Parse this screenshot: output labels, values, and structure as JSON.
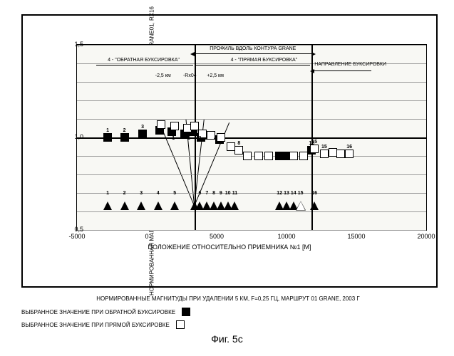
{
  "axes": {
    "ylabel": "НОРМИРОВАННАЯ МАГНИТУДА ПРОВЕДЕНИЕ ЭЛЕКТРОКАРОТАЖА ПРИ БУКСИРОВКЕ, GRANE01, RX16",
    "xlabel": "ПОЛОЖЕНИЕ ОТНОСИТЕЛЬНО ПРИЕМНИКА №1 [М]",
    "xlim": [
      -5000,
      20000
    ],
    "ylim": [
      0.5,
      1.5
    ],
    "xticks": [
      -5000,
      0,
      5000,
      10000,
      15000,
      20000
    ],
    "yticks": [
      0.5,
      1.0,
      1.5
    ],
    "plot_bg": "#f8f8f4",
    "grid_color": "#9a9a9a",
    "minor_y_lines": 8
  },
  "annotations": {
    "profile": "ПРОФИЛЬ ВДОЛЬ КОНТУРА GRANE",
    "reverse_tow": "4 - \"ОБРАТНАЯ БУКСИРОВКА\"",
    "forward_tow": "4 - \"ПРЯМАЯ БУКСИРОВКА\"",
    "direction": "НАПРАВЛЕНИЕ БУКСИРОВКИ",
    "minus25": "-2,5 км",
    "rx04": "-Rx04",
    "plus25": "+2,5 км",
    "profile_vlines_x": [
      3400,
      11800
    ]
  },
  "series": {
    "filled": [
      {
        "x": -2800,
        "y": 1.0,
        "label": "1"
      },
      {
        "x": -1600,
        "y": 1.0,
        "label": "2"
      },
      {
        "x": -300,
        "y": 1.02,
        "label": "3"
      },
      {
        "x": 900,
        "y": 1.04
      },
      {
        "x": 1800,
        "y": 1.03
      },
      {
        "x": 2700,
        "y": 1.02
      },
      {
        "x": 3300,
        "y": 1.03
      },
      {
        "x": 3900,
        "y": 1.0
      },
      {
        "x": 4500,
        "y": 1.01
      },
      {
        "x": 5200,
        "y": 0.99
      },
      {
        "x": 9500,
        "y": 0.9
      },
      {
        "x": 10000,
        "y": 0.9
      },
      {
        "x": 11800,
        "y": 0.93,
        "label": "16"
      }
    ],
    "hollow": [
      {
        "x": 1000,
        "y": 1.07
      },
      {
        "x": 2000,
        "y": 1.06
      },
      {
        "x": 2900,
        "y": 1.05
      },
      {
        "x": 3400,
        "y": 1.06
      },
      {
        "x": 4000,
        "y": 1.02
      },
      {
        "x": 4600,
        "y": 1.01
      },
      {
        "x": 5300,
        "y": 1.0
      },
      {
        "x": 6000,
        "y": 0.95
      },
      {
        "x": 6600,
        "y": 0.93,
        "label": "8"
      },
      {
        "x": 7200,
        "y": 0.9
      },
      {
        "x": 8000,
        "y": 0.9
      },
      {
        "x": 8700,
        "y": 0.9
      },
      {
        "x": 10500,
        "y": 0.9
      },
      {
        "x": 11200,
        "y": 0.9
      },
      {
        "x": 12000,
        "y": 0.94,
        "label": "15"
      },
      {
        "x": 12700,
        "y": 0.91,
        "label": "15"
      },
      {
        "x": 13300,
        "y": 0.92
      },
      {
        "x": 13900,
        "y": 0.91
      },
      {
        "x": 14500,
        "y": 0.91,
        "label": "16"
      }
    ],
    "triangles": [
      {
        "x": -2800,
        "label": "1"
      },
      {
        "x": -1600,
        "label": "2"
      },
      {
        "x": -400,
        "label": "3"
      },
      {
        "x": 800,
        "label": "4"
      },
      {
        "x": 2000,
        "label": "5"
      },
      {
        "x": 3400
      },
      {
        "x": 3800,
        "label": "6"
      },
      {
        "x": 4300,
        "label": "7"
      },
      {
        "x": 4800,
        "label": "8"
      },
      {
        "x": 5300,
        "label": "9"
      },
      {
        "x": 5800,
        "label": "10"
      },
      {
        "x": 6300,
        "label": "11"
      },
      {
        "x": 9500,
        "label": "12"
      },
      {
        "x": 10000,
        "label": "13"
      },
      {
        "x": 10500,
        "label": "14"
      },
      {
        "x": 11000,
        "label": "15"
      },
      {
        "x": 12000,
        "label": "16"
      }
    ],
    "triangles_hollow": [
      {
        "x": 11000
      }
    ],
    "triangle_y": 0.63
  },
  "caption": "НОРМИРОВАННЫЕ МАГНИТУДЫ ПРИ УДАЛЕНИИ 5 КМ, F=0,25 ГЦ, МАРШРУТ 01 GRANE, 2003 Г",
  "legend": {
    "reverse": "ВЫБРАННОЕ ЗНАЧЕНИЕ ПРИ ОБРАТНОЙ БУКСИРОВКЕ",
    "forward": "ВЫБРАННОЕ ЗНАЧЕНИЕ ПРИ ПРЯМОЙ БУКСИРОВКЕ"
  },
  "figure_label": "Фиг. 5c",
  "diag_v_lines": [
    {
      "x1_data": 900,
      "y1_data": 1.08,
      "x2_data": 3400,
      "y2_data": 0.63
    },
    {
      "x1_data": 2800,
      "y1_data": 1.1,
      "x2_data": 3400,
      "y2_data": 0.63
    },
    {
      "x1_data": 4100,
      "y1_data": 1.1,
      "x2_data": 3400,
      "y2_data": 0.63
    },
    {
      "x1_data": 5900,
      "y1_data": 1.08,
      "x2_data": 3400,
      "y2_data": 0.63
    }
  ]
}
